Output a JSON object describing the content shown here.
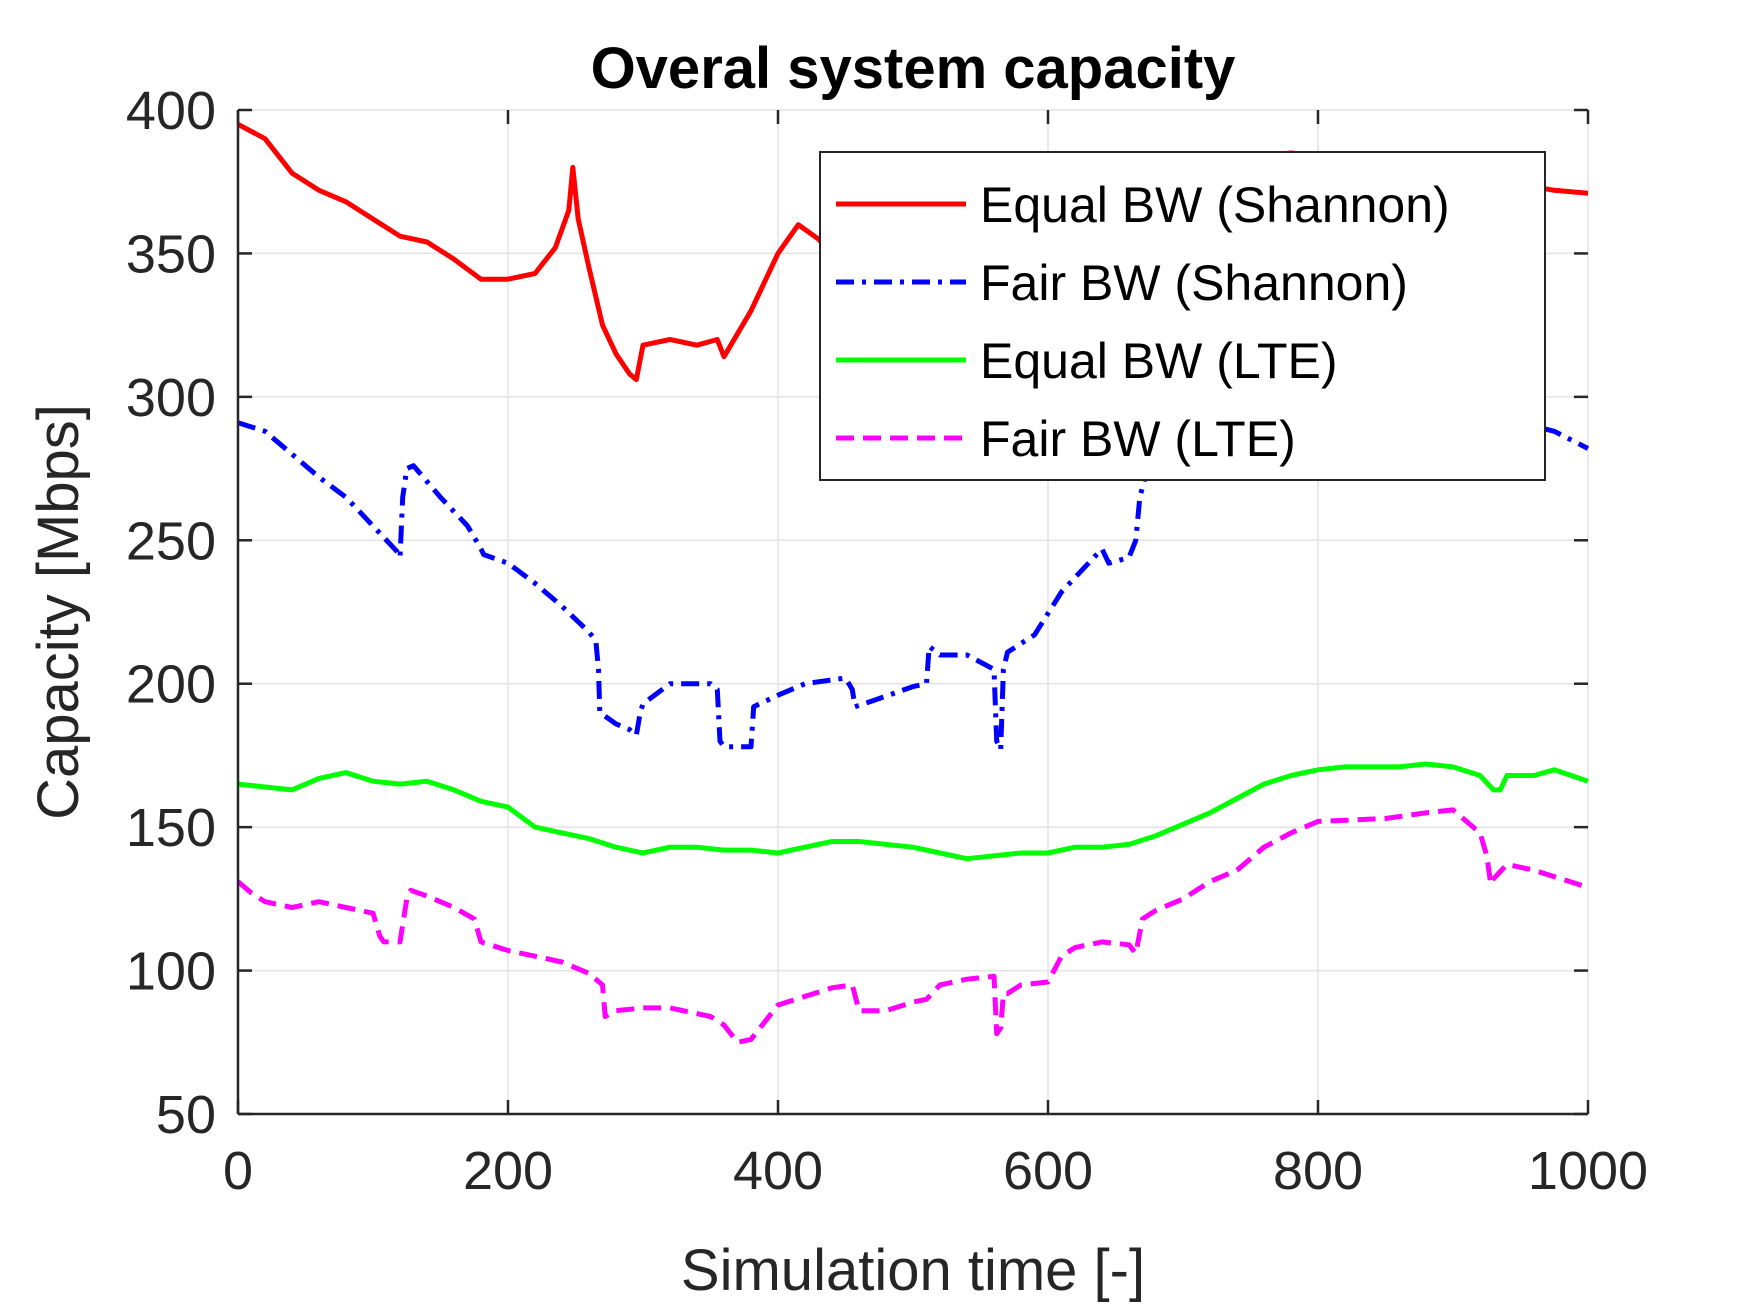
{
  "chart_data": {
    "type": "line",
    "title": "Overal system capacity",
    "xlabel": "Simulation time [-]",
    "ylabel": "Capacity [Mbps]",
    "xlim": [
      0,
      1000
    ],
    "ylim": [
      50,
      400
    ],
    "xticks": [
      0,
      200,
      400,
      600,
      800,
      1000
    ],
    "yticks": [
      50,
      100,
      150,
      200,
      250,
      300,
      350,
      400
    ],
    "grid": true,
    "legend_position": "top-right",
    "series": [
      {
        "name": "Equal BW (Shannon)",
        "color": "#ff0000",
        "dash": "solid",
        "x": [
          0,
          20,
          40,
          60,
          80,
          100,
          120,
          140,
          160,
          180,
          200,
          220,
          235,
          245,
          248,
          252,
          260,
          270,
          280,
          290,
          295,
          300,
          320,
          340,
          355,
          360,
          380,
          400,
          415,
          430,
          450,
          480,
          520,
          560,
          600,
          650,
          700,
          740,
          760,
          780,
          800,
          850,
          900,
          950,
          975,
          1000
        ],
        "y": [
          395,
          390,
          378,
          372,
          368,
          362,
          356,
          354,
          348,
          341,
          341,
          343,
          352,
          365,
          380,
          362,
          345,
          325,
          315,
          308,
          306,
          318,
          320,
          318,
          320,
          314,
          330,
          350,
          360,
          355,
          345,
          340,
          345,
          350,
          355,
          362,
          370,
          378,
          384,
          385,
          384,
          382,
          378,
          374,
          372,
          371
        ]
      },
      {
        "name": "Fair BW (Shannon)",
        "color": "#0000ff",
        "dash": "dashdot",
        "x": [
          0,
          20,
          40,
          60,
          80,
          100,
          118,
          120,
          122,
          125,
          130,
          150,
          170,
          180,
          182,
          200,
          220,
          240,
          260,
          265,
          267,
          268,
          280,
          290,
          295,
          298,
          300,
          320,
          350,
          355,
          357,
          360,
          380,
          382,
          400,
          420,
          450,
          455,
          457,
          470,
          500,
          510,
          512,
          520,
          540,
          560,
          562,
          565,
          567,
          570,
          590,
          610,
          630,
          640,
          645,
          660,
          665,
          668,
          672,
          680,
          700,
          740,
          780,
          800,
          850,
          900,
          950,
          975,
          1000
        ],
        "y": [
          291,
          288,
          280,
          272,
          265,
          255,
          246,
          244,
          265,
          275,
          276,
          265,
          255,
          247,
          245,
          242,
          235,
          227,
          218,
          215,
          205,
          190,
          186,
          184,
          182,
          190,
          193,
          200,
          200,
          198,
          180,
          178,
          178,
          192,
          196,
          200,
          202,
          198,
          192,
          194,
          199,
          200,
          213,
          210,
          210,
          205,
          180,
          177,
          205,
          211,
          217,
          232,
          242,
          247,
          242,
          244,
          250,
          265,
          272,
          276,
          282,
          288,
          290,
          292,
          290,
          292,
          291,
          288,
          282
        ]
      },
      {
        "name": "Equal BW (LTE)",
        "color": "#00ff00",
        "dash": "solid",
        "x": [
          0,
          20,
          40,
          60,
          80,
          100,
          120,
          140,
          160,
          180,
          200,
          220,
          240,
          260,
          280,
          300,
          320,
          340,
          360,
          380,
          400,
          420,
          440,
          460,
          480,
          500,
          520,
          540,
          560,
          580,
          600,
          620,
          640,
          660,
          680,
          700,
          720,
          740,
          760,
          780,
          800,
          820,
          840,
          860,
          880,
          900,
          920,
          930,
          935,
          940,
          960,
          975,
          1000
        ],
        "y": [
          165,
          164,
          163,
          167,
          169,
          166,
          165,
          166,
          163,
          159,
          157,
          150,
          148,
          146,
          143,
          141,
          143,
          143,
          142,
          142,
          141,
          143,
          145,
          145,
          144,
          143,
          141,
          139,
          140,
          141,
          141,
          143,
          143,
          144,
          147,
          151,
          155,
          160,
          165,
          168,
          170,
          171,
          171,
          171,
          172,
          171,
          168,
          163,
          163,
          168,
          168,
          170,
          166
        ]
      },
      {
        "name": "Fair BW (LTE)",
        "color": "#ff00ff",
        "dash": "dashed",
        "x": [
          0,
          10,
          20,
          40,
          60,
          80,
          100,
          105,
          108,
          120,
          125,
          128,
          140,
          160,
          175,
          180,
          200,
          220,
          240,
          260,
          270,
          272,
          280,
          300,
          320,
          350,
          360,
          370,
          380,
          390,
          400,
          420,
          440,
          455,
          460,
          480,
          500,
          510,
          520,
          540,
          560,
          562,
          565,
          567,
          570,
          580,
          600,
          610,
          620,
          640,
          660,
          665,
          670,
          680,
          700,
          720,
          740,
          760,
          780,
          800,
          850,
          880,
          900,
          920,
          925,
          928,
          930,
          940,
          960,
          980,
          1000
        ],
        "y": [
          131,
          127,
          124,
          122,
          124,
          122,
          120,
          112,
          110,
          110,
          125,
          128,
          126,
          122,
          118,
          110,
          107,
          105,
          103,
          99,
          95,
          84,
          86,
          87,
          87,
          84,
          81,
          75,
          76,
          82,
          88,
          91,
          94,
          95,
          86,
          86,
          89,
          90,
          95,
          97,
          98,
          78,
          80,
          92,
          92,
          95,
          96,
          105,
          108,
          110,
          109,
          106,
          118,
          121,
          125,
          131,
          135,
          143,
          148,
          152,
          153,
          155,
          156,
          148,
          140,
          130,
          132,
          137,
          135,
          132,
          129
        ]
      }
    ]
  }
}
